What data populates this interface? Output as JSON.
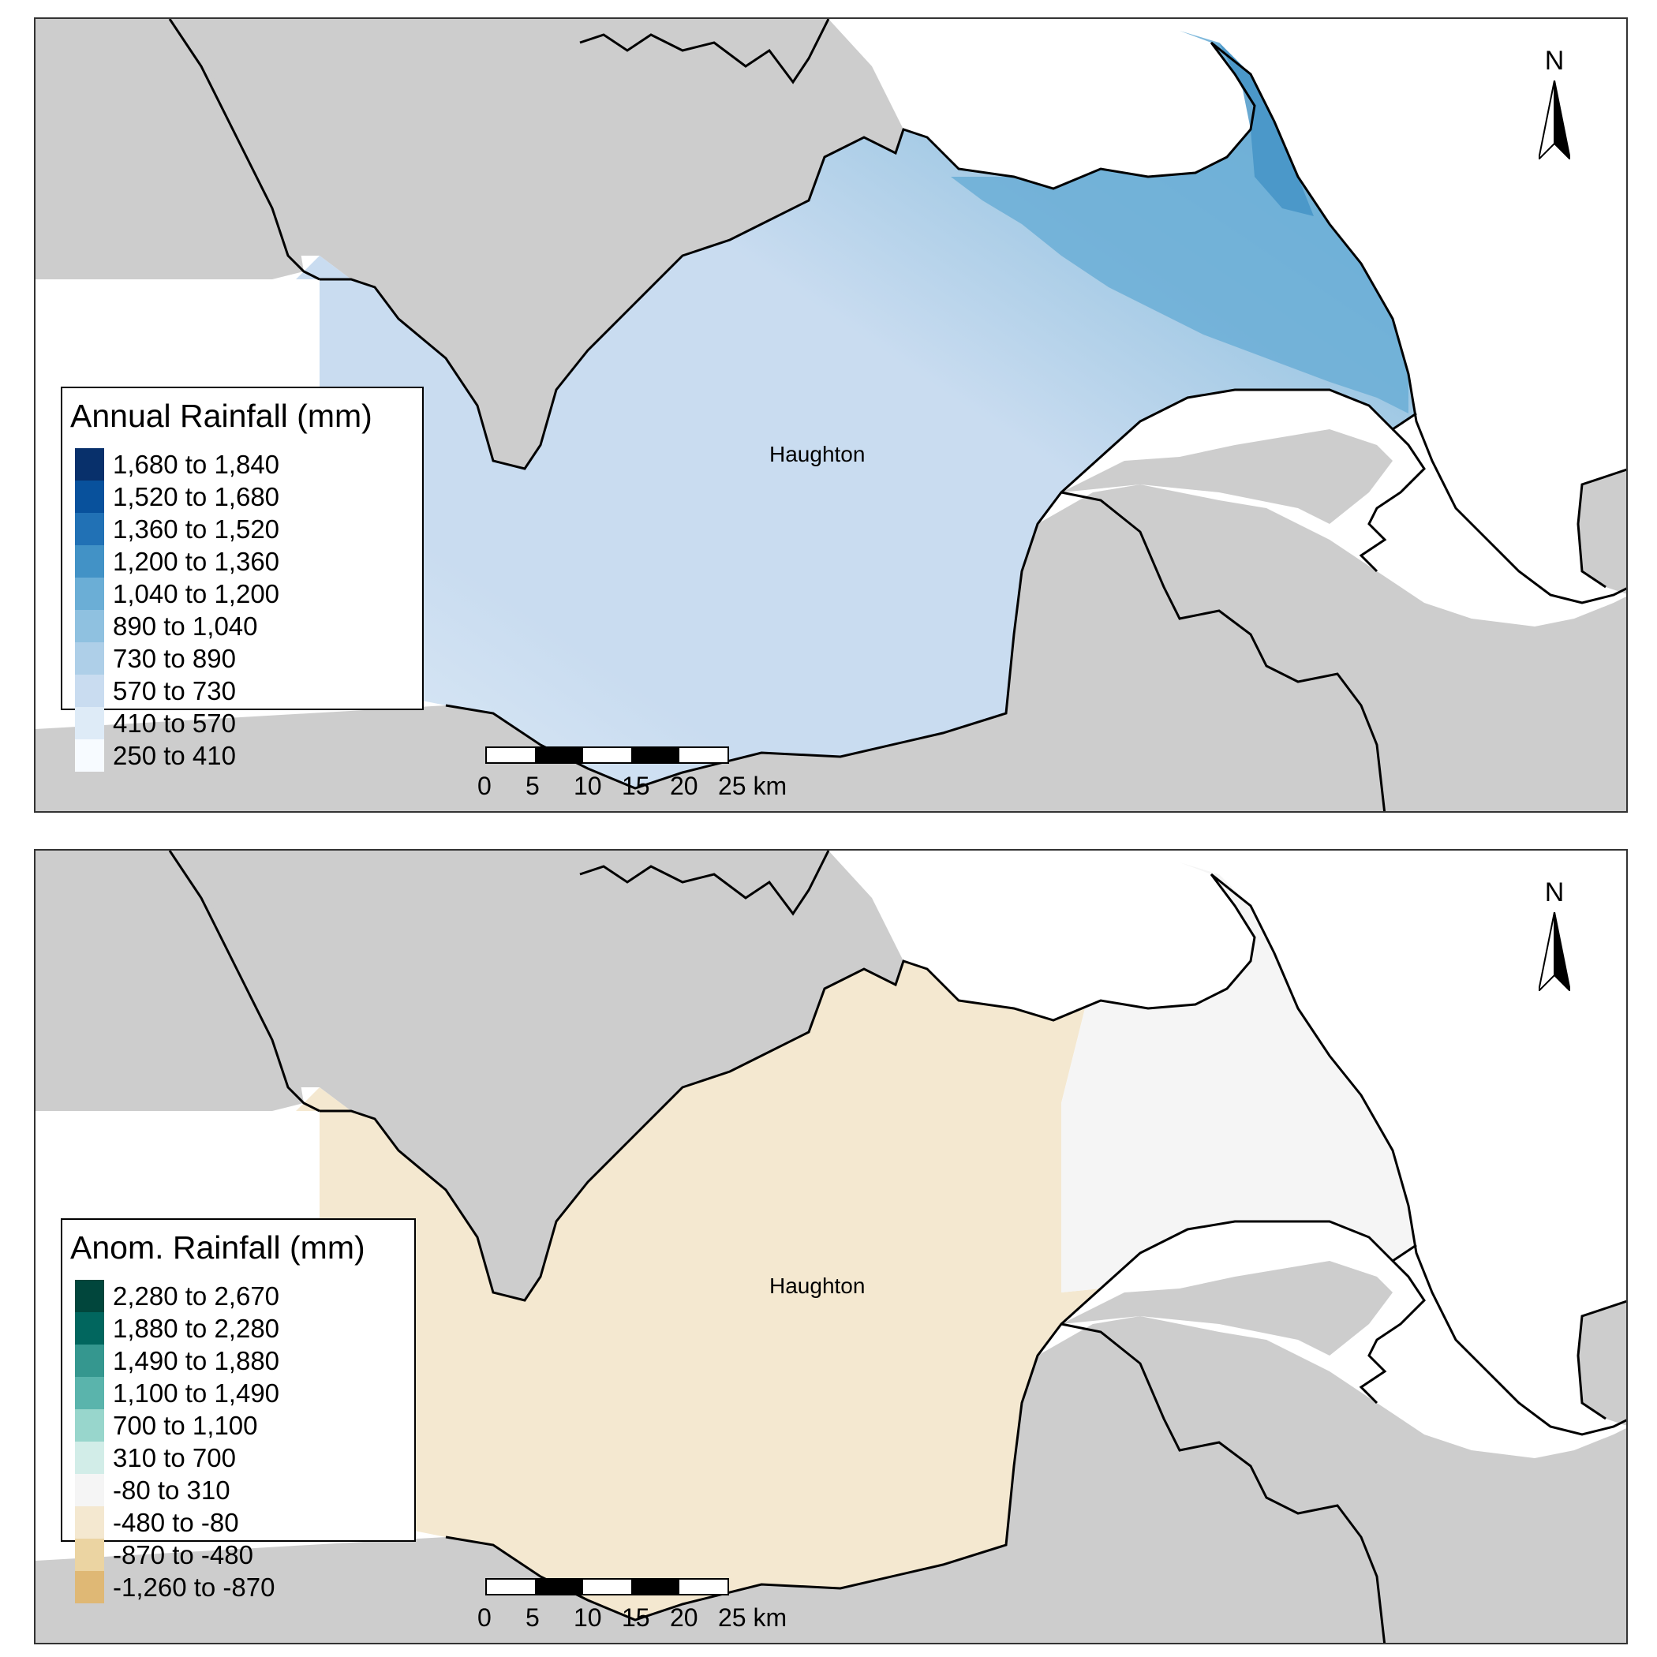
{
  "colors": {
    "land": "#cdcdcd",
    "sea": "#ffffff",
    "boundary": "#000000"
  },
  "top_map": {
    "legend": {
      "title": "Annual Rainfall (mm)",
      "items": [
        {
          "label": "1,680 to 1,840",
          "color": "#08306b"
        },
        {
          "label": "1,520 to 1,680",
          "color": "#08519c"
        },
        {
          "label": "1,360 to 1,520",
          "color": "#2171b5"
        },
        {
          "label": "1,200 to 1,360",
          "color": "#4292c6"
        },
        {
          "label": "1,040 to 1,200",
          "color": "#6baed6"
        },
        {
          "label": "890 to 1,040",
          "color": "#8fc1e0"
        },
        {
          "label": "730 to 890",
          "color": "#aecfe8"
        },
        {
          "label": "570 to 730",
          "color": "#c9dcf0"
        },
        {
          "label": "410 to 570",
          "color": "#deebf7"
        },
        {
          "label": "250 to 410",
          "color": "#f7fbff"
        }
      ]
    },
    "town_label": "Haughton",
    "north_label": "N",
    "scale": {
      "ticks": [
        "0",
        "5",
        "10",
        "15",
        "20",
        "25 km"
      ]
    }
  },
  "bottom_map": {
    "legend": {
      "title": "Anom. Rainfall (mm)",
      "items": [
        {
          "label": "2,280 to 2,670",
          "color": "#01463c"
        },
        {
          "label": "1,880 to 2,280",
          "color": "#01665e"
        },
        {
          "label": "1,490 to 1,880",
          "color": "#35978f"
        },
        {
          "label": "1,100 to 1,490",
          "color": "#5ab4ac"
        },
        {
          "label": "700 to 1,100",
          "color": "#98d6cc"
        },
        {
          "label": "310 to 700",
          "color": "#d2ede8"
        },
        {
          "label": "-80 to 310",
          "color": "#f5f5f5"
        },
        {
          "label": "-480 to -80",
          "color": "#f4e8d0"
        },
        {
          "label": "-870 to -480",
          "color": "#ebd4a2"
        },
        {
          "label": "-1,260 to -870",
          "color": "#dfb875"
        }
      ]
    },
    "town_label": "Haughton",
    "north_label": "N",
    "scale": {
      "ticks": [
        "0",
        "5",
        "10",
        "15",
        "20",
        "25 km"
      ]
    }
  }
}
